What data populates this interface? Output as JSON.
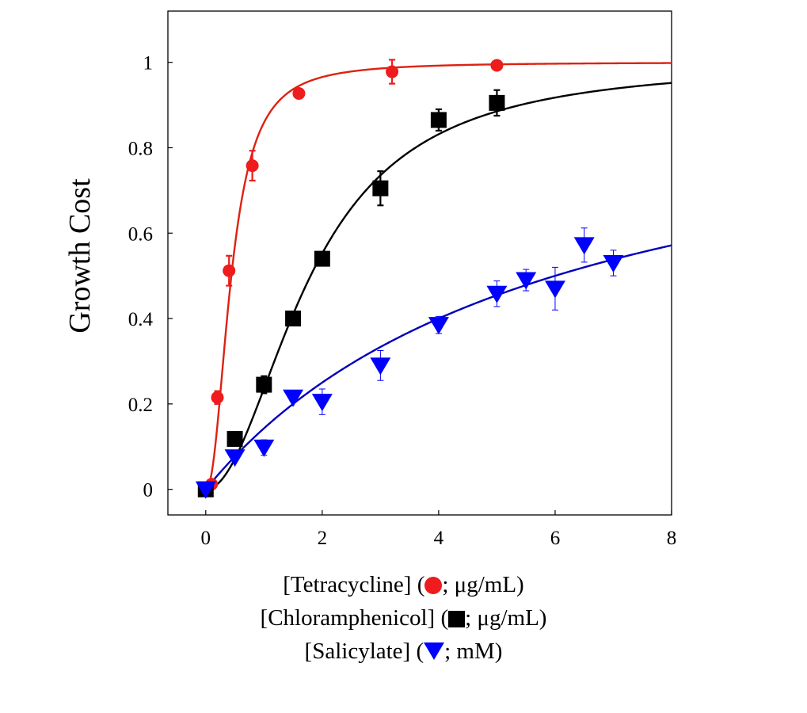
{
  "chart_data": {
    "type": "scatter",
    "title": "",
    "xlabel": "",
    "ylabel": "Growth Cost",
    "xlim": [
      -0.65,
      8
    ],
    "ylim": [
      -0.06,
      1.12
    ],
    "xticks": [
      0,
      2,
      4,
      6,
      8
    ],
    "xtick_labels": [
      "0",
      "2",
      "4",
      "6",
      "8"
    ],
    "yticks": [
      0,
      0.2,
      0.4,
      0.6,
      0.8,
      1
    ],
    "ytick_labels": [
      "0",
      "0.2",
      "0.4",
      "0.6",
      "0.8",
      "1"
    ],
    "grid": false,
    "legend_position": "below",
    "series": [
      {
        "name": "Tetracycline",
        "color": "#ee1c1c",
        "marker": "circle",
        "x": [
          0.1,
          0.2,
          0.4,
          0.8,
          1.6,
          3.2,
          5.0
        ],
        "y": [
          0.012,
          0.215,
          0.512,
          0.758,
          0.927,
          0.978,
          0.993
        ],
        "yerr": [
          0.0,
          0.015,
          0.035,
          0.035,
          0.0,
          0.028,
          0.0
        ],
        "fit": {
          "model": "hill",
          "K": 0.44,
          "n": 2.2,
          "ymax": 1.0,
          "color": "#dd2211"
        }
      },
      {
        "name": "Chloramphenicol",
        "color": "#000000",
        "marker": "square",
        "x": [
          0,
          0.5,
          1.0,
          1.5,
          2.0,
          3.0,
          4.0,
          5.0
        ],
        "y": [
          0.0,
          0.118,
          0.245,
          0.4,
          0.54,
          0.705,
          0.865,
          0.905
        ],
        "yerr": [
          0.0,
          0.015,
          0.02,
          0.0,
          0.015,
          0.04,
          0.025,
          0.03
        ],
        "fit": {
          "model": "hill",
          "K": 1.8,
          "n": 2.0,
          "ymax": 1.0,
          "color": "#000000"
        }
      },
      {
        "name": "Salicylate",
        "color": "#0000ff",
        "marker": "triangle-down",
        "x": [
          0,
          0.5,
          1.0,
          1.5,
          2.0,
          3.0,
          4.0,
          5.0,
          5.5,
          6.0,
          6.5,
          7.0
        ],
        "y": [
          0.0,
          0.075,
          0.098,
          0.215,
          0.205,
          0.29,
          0.385,
          0.458,
          0.49,
          0.47,
          0.572,
          0.53
        ],
        "yerr": [
          0.0,
          0.0,
          0.018,
          0.0,
          0.03,
          0.035,
          0.02,
          0.03,
          0.025,
          0.05,
          0.04,
          0.03
        ],
        "fit": {
          "model": "hyperbolic",
          "K": 6.0,
          "ymax": 1.0,
          "color": "#0000bb"
        }
      }
    ]
  },
  "legend": {
    "lines": [
      {
        "series": "Tetracycline",
        "marker": "circle",
        "color": "#ee1c1c",
        "before": "[Tetracycline] (",
        "after": ";  μg/mL)"
      },
      {
        "series": "Chloramphenicol",
        "marker": "square",
        "color": "#000000",
        "before": "[Chloramphenicol] (",
        "after": "; μg/mL)"
      },
      {
        "series": "Salicylate",
        "marker": "triangle",
        "color": "#0000ff",
        "before": "[Salicylate] (",
        "after": ";  mM)"
      }
    ]
  }
}
